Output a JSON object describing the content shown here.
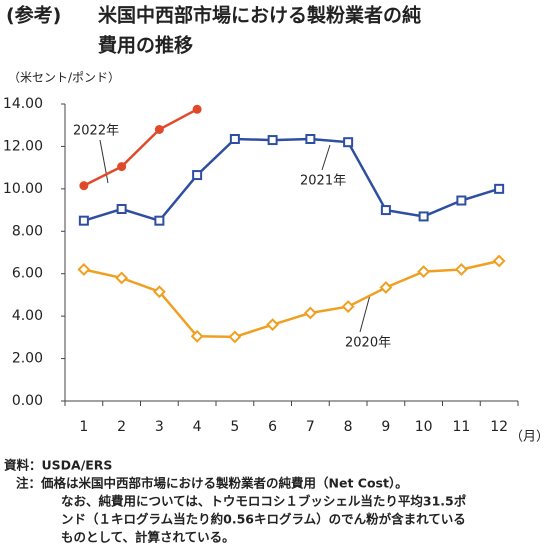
{
  "chart_data": {
    "type": "line",
    "label": "(参考)",
    "title": [
      "米国中西部市場における製粉業者の純",
      "費用の推移"
    ],
    "y_axis_label": "（米セント/ポンド）",
    "x_axis_label": "（月）",
    "categories": [
      "1",
      "2",
      "3",
      "4",
      "5",
      "6",
      "7",
      "8",
      "9",
      "10",
      "11",
      "12"
    ],
    "series": [
      {
        "name": "2020年",
        "color": "#f0a020",
        "marker": "diamond",
        "values": [
          6.2,
          5.8,
          5.15,
          3.05,
          3.02,
          3.6,
          4.15,
          4.45,
          5.35,
          6.1,
          6.2,
          6.6
        ]
      },
      {
        "name": "2021年",
        "color": "#2e4fa0",
        "marker": "square",
        "values": [
          8.5,
          9.05,
          8.5,
          10.65,
          12.35,
          12.3,
          12.35,
          12.2,
          9.0,
          8.7,
          9.45,
          10.0
        ]
      },
      {
        "name": "2022年",
        "color": "#e04a2a",
        "marker": "circle",
        "values": [
          10.15,
          11.05,
          12.8,
          13.75,
          null,
          null,
          null,
          null,
          null,
          null,
          null,
          null
        ]
      }
    ],
    "ylim": [
      0,
      14
    ],
    "yticks": [
      {
        "value": 0,
        "label": "0.00"
      },
      {
        "value": 2,
        "label": "2.00"
      },
      {
        "value": 4,
        "label": "4.00"
      },
      {
        "value": 6,
        "label": "6.00"
      },
      {
        "value": 8,
        "label": "8.00"
      },
      {
        "value": 10,
        "label": "10.00"
      },
      {
        "value": 12,
        "label": "12.00"
      },
      {
        "value": 14,
        "label": "14.00"
      }
    ],
    "grid": false,
    "source": "資料：USDA/ERS",
    "notes": [
      "注：価格は米国中西部市場における製粉業者の純費用（Net Cost）。",
      "なお、純費用については、トウモロコシ１ブッシェル当たり平均31.5ポ",
      "ンド（１キログラム当たり約0.56キログラム）のでん粉が含まれている",
      "ものとして、計算されている。"
    ]
  }
}
